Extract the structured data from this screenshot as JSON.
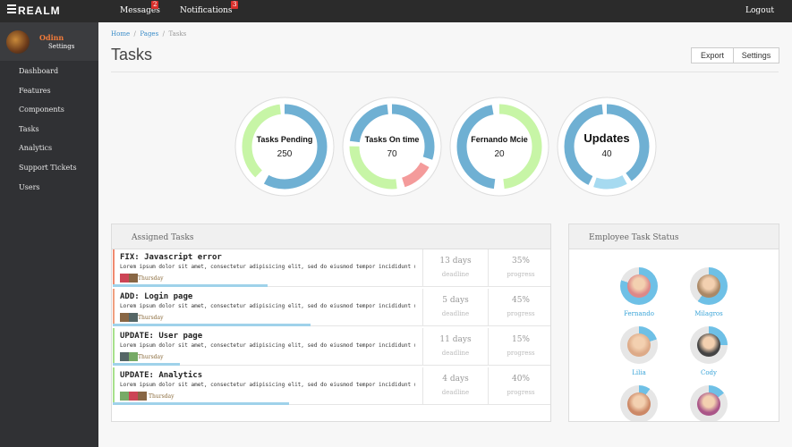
{
  "header": {
    "logo": "REALM",
    "nav": [
      {
        "label": "Messages",
        "badge": "2"
      },
      {
        "label": "Notifications",
        "badge": "3"
      }
    ],
    "logout": "Logout"
  },
  "sidebar": {
    "user": {
      "name": "Odinn",
      "link": "Settings"
    },
    "menu": [
      "Dashboard",
      "Features",
      "Components",
      "Tasks",
      "Analytics",
      "Support Tickets",
      "Users"
    ]
  },
  "breadcrumb": [
    "Home",
    "Pages",
    "Tasks"
  ],
  "page": {
    "title": "Tasks",
    "actions": [
      "Export",
      "Settings"
    ]
  },
  "stats": [
    {
      "label": "Tasks Pending",
      "value": 250
    },
    {
      "label": "Tasks On time",
      "value": 70
    },
    {
      "label": "Fernando Mcie",
      "value": 20
    },
    {
      "label": "Updates",
      "value": 40
    }
  ],
  "assigned_tasks": {
    "title": "Assigned Tasks",
    "tasks": [
      {
        "title": "FIX: Javascript error",
        "description": "Lorem ipsum dolor sit amet, consectetur adipisicing elit, sed do eiusmod tempor incididunt ut",
        "day": "Thursday",
        "deadline": "13 days",
        "deadline_label": "deadline",
        "progress": "35%",
        "progress_label": "progress"
      },
      {
        "title": "ADD: Login page",
        "description": "Lorem ipsum dolor sit amet, consectetur adipisicing elit, sed do eiusmod tempor incididunt ut",
        "day": "Thursday",
        "deadline": "5 days",
        "deadline_label": "deadline",
        "progress": "45%",
        "progress_label": "progress"
      },
      {
        "title": "UPDATE: User page",
        "description": "Lorem ipsum dolor sit amet, consectetur adipisicing elit, sed do eiusmod tempor incididunt ut",
        "day": "Thursday",
        "deadline": "11 days",
        "deadline_label": "deadline",
        "progress": "15%",
        "progress_label": "progress"
      },
      {
        "title": "UPDATE: Analytics",
        "description": "Lorem ipsum dolor sit amet, consectetur adipisicing elit, sed do eiusmod tempor incididunt ut",
        "day": "Thursday",
        "deadline": "4 days",
        "deadline_label": "deadline",
        "progress": "40%",
        "progress_label": "progress"
      }
    ]
  },
  "employee_status": {
    "title": "Employee Task Status",
    "employees": [
      "Fernando",
      "Milagros",
      "Lilia",
      "Cody"
    ]
  }
}
